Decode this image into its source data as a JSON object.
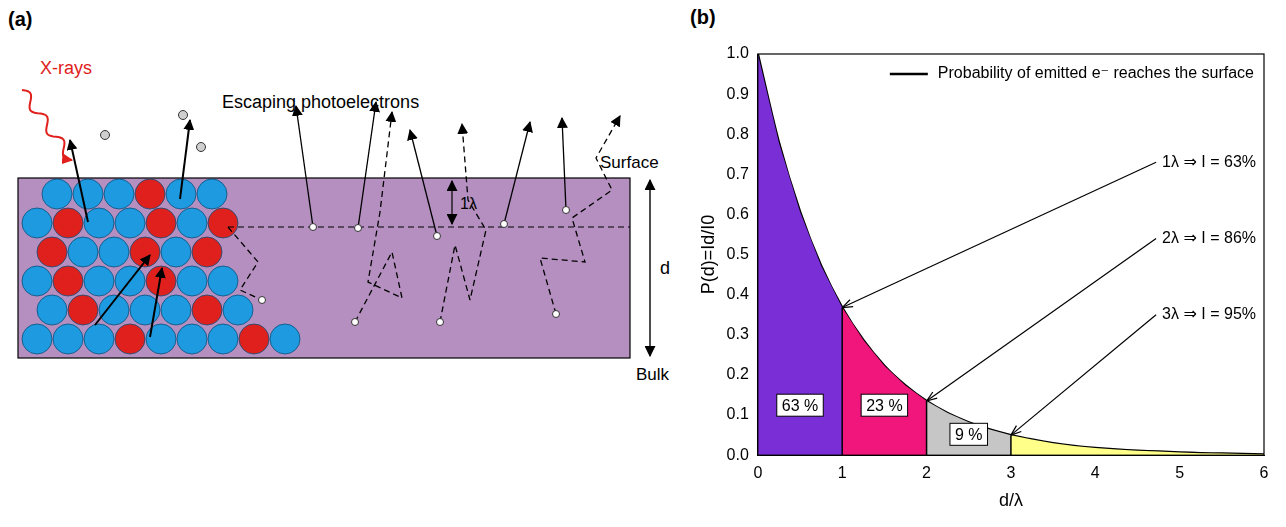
{
  "panel_a": {
    "letter": "(a)",
    "xrays": "X-rays",
    "escaping": "Escaping photoelectrons",
    "surface": "Surface",
    "bulk": "Bulk",
    "depth": "d",
    "step": "1λ"
  },
  "chart_data": {
    "letter": "(b)",
    "type": "line",
    "x_label": "d/λ",
    "y_label": "P(d)=Id/I0",
    "x": [
      0,
      0.25,
      0.5,
      0.75,
      1,
      1.25,
      1.5,
      1.75,
      2,
      2.25,
      2.5,
      2.75,
      3,
      3.25,
      3.5,
      3.75,
      4,
      4.25,
      4.5,
      4.75,
      5,
      5.25,
      5.5,
      5.75,
      6
    ],
    "series": [
      {
        "name": "Probability of emitted e⁻ reaches the surface",
        "color": "#000000",
        "values": [
          1,
          0.779,
          0.607,
          0.472,
          0.368,
          0.287,
          0.223,
          0.174,
          0.135,
          0.105,
          0.082,
          0.064,
          0.05,
          0.039,
          0.03,
          0.023,
          0.018,
          0.014,
          0.011,
          0.009,
          0.007,
          0.005,
          0.004,
          0.003,
          0.002
        ]
      }
    ],
    "regions": [
      {
        "from": 0,
        "to": 1,
        "color": "#7a2fd6",
        "label": "63 %"
      },
      {
        "from": 1,
        "to": 2,
        "color": "#f0167c",
        "label": "23 %"
      },
      {
        "from": 2,
        "to": 3,
        "color": "#c6c6c6",
        "label": "9 %"
      },
      {
        "from": 3,
        "to": 6,
        "color": "#ffff8a"
      }
    ],
    "annotations": [
      {
        "text": "1λ ⇒ I = 63%",
        "x": 1,
        "y": 0.368
      },
      {
        "text": "2λ ⇒ I = 86%",
        "x": 2,
        "y": 0.135
      },
      {
        "text": "3λ ⇒ I = 95%",
        "x": 3,
        "y": 0.05
      }
    ],
    "xlim": [
      0,
      6
    ],
    "xticks": [
      0,
      1,
      2,
      3,
      4,
      5,
      6
    ],
    "ylim": [
      0,
      1
    ],
    "yticks": [
      {
        "value": 0,
        "label": "0.0"
      },
      0.1,
      0.2,
      0.3,
      0.4,
      0.5,
      0.6,
      0.7,
      0.8,
      0.9,
      {
        "value": 1,
        "label": "1.0"
      }
    ],
    "grid": false,
    "legend": "upper right"
  }
}
